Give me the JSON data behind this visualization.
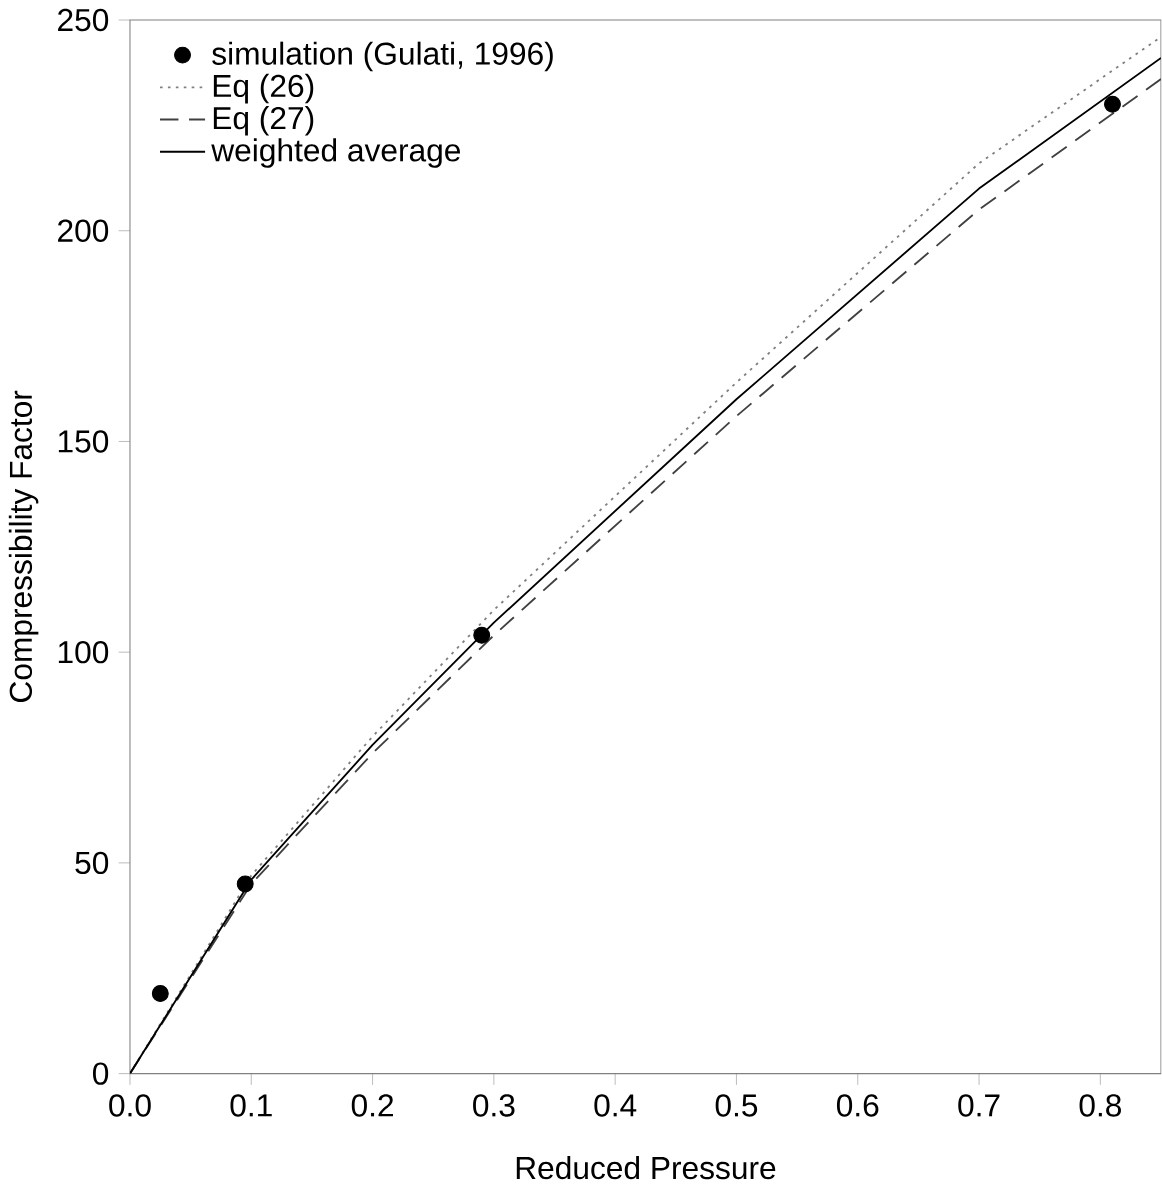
{
  "chart_data": {
    "type": "line",
    "xlabel": "Reduced Pressure",
    "ylabel": "Compressibility Factor",
    "xlim": [
      0,
      0.85
    ],
    "ylim": [
      0,
      250
    ],
    "xticks": [
      {
        "value": 0,
        "label": "0.0"
      },
      0.1,
      0.2,
      0.3,
      0.4,
      0.5,
      0.6,
      0.7,
      0.8
    ],
    "yticks": [
      0,
      50,
      100,
      150,
      200,
      250
    ],
    "legend": "top left",
    "grid": false,
    "series": [
      {
        "name": "simulation (Gulati, 1996)",
        "type": "scatter",
        "color": "#000000",
        "x": [
          0.025,
          0.095,
          0.29,
          0.81
        ],
        "values": [
          19,
          45,
          104,
          230
        ]
      },
      {
        "name": "Eq (26)",
        "line_style": "dotted",
        "color": "#808080",
        "x": [
          0,
          0.1,
          0.2,
          0.3,
          0.5,
          0.7,
          0.85
        ],
        "values": [
          0,
          47,
          80,
          110,
          164,
          216,
          246
        ]
      },
      {
        "name": "Eq (27)",
        "line_style": "dashed",
        "color": "#404040",
        "x": [
          0,
          0.1,
          0.2,
          0.3,
          0.5,
          0.7,
          0.85
        ],
        "values": [
          0,
          45,
          76,
          104,
          156,
          205,
          236
        ]
      },
      {
        "name": "weighted average",
        "line_style": "solid",
        "color": "#000000",
        "x": [
          0,
          0.1,
          0.2,
          0.3,
          0.5,
          0.7,
          0.85
        ],
        "values": [
          0,
          46,
          78,
          107,
          160,
          210,
          241
        ]
      }
    ]
  }
}
